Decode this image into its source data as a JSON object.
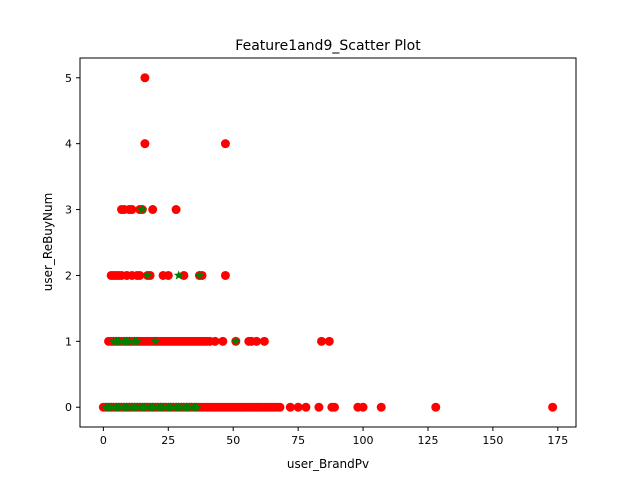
{
  "chart_data": {
    "type": "scatter",
    "title": "Feature1and9_Scatter Plot",
    "xlabel": "user_BrandPv",
    "ylabel": "user_ReBuyNum",
    "xlim": [
      -9,
      182
    ],
    "ylim": [
      -0.3,
      5.3
    ],
    "xticks": [
      0,
      25,
      50,
      75,
      100,
      125,
      150,
      175
    ],
    "yticks": [
      0,
      1,
      2,
      3,
      4,
      5
    ],
    "grid": false,
    "series": [
      {
        "marker": "circle",
        "color": "#ff0000",
        "points": [
          [
            16,
            5
          ],
          [
            16,
            4
          ],
          [
            47,
            4
          ],
          [
            7,
            3
          ],
          [
            8,
            3
          ],
          [
            10,
            3
          ],
          [
            11,
            3
          ],
          [
            14,
            3
          ],
          [
            15,
            3
          ],
          [
            19,
            3
          ],
          [
            28,
            3
          ],
          [
            3,
            2
          ],
          [
            4,
            2
          ],
          [
            5,
            2
          ],
          [
            6,
            2
          ],
          [
            7,
            2
          ],
          [
            9,
            2
          ],
          [
            11,
            2
          ],
          [
            13,
            2
          ],
          [
            14,
            2
          ],
          [
            17,
            2
          ],
          [
            18,
            2
          ],
          [
            23,
            2
          ],
          [
            25,
            2
          ],
          [
            31,
            2
          ],
          [
            37,
            2
          ],
          [
            38,
            2
          ],
          [
            47,
            2
          ],
          [
            2,
            1
          ],
          [
            3,
            1
          ],
          [
            4,
            1
          ],
          [
            5,
            1
          ],
          [
            6,
            1
          ],
          [
            7,
            1
          ],
          [
            8,
            1
          ],
          [
            9,
            1
          ],
          [
            10,
            1
          ],
          [
            11,
            1
          ],
          [
            12,
            1
          ],
          [
            13,
            1
          ],
          [
            14,
            1
          ],
          [
            15,
            1
          ],
          [
            16,
            1
          ],
          [
            17,
            1
          ],
          [
            18,
            1
          ],
          [
            19,
            1
          ],
          [
            20,
            1
          ],
          [
            21,
            1
          ],
          [
            22,
            1
          ],
          [
            23,
            1
          ],
          [
            24,
            1
          ],
          [
            25,
            1
          ],
          [
            26,
            1
          ],
          [
            27,
            1
          ],
          [
            28,
            1
          ],
          [
            29,
            1
          ],
          [
            30,
            1
          ],
          [
            31,
            1
          ],
          [
            32,
            1
          ],
          [
            33,
            1
          ],
          [
            34,
            1
          ],
          [
            35,
            1
          ],
          [
            36,
            1
          ],
          [
            37,
            1
          ],
          [
            38,
            1
          ],
          [
            39,
            1
          ],
          [
            40,
            1
          ],
          [
            41,
            1
          ],
          [
            43,
            1
          ],
          [
            46,
            1
          ],
          [
            51,
            1
          ],
          [
            56,
            1
          ],
          [
            57,
            1
          ],
          [
            59,
            1
          ],
          [
            62,
            1
          ],
          [
            84,
            1
          ],
          [
            87,
            1
          ],
          [
            0,
            0
          ],
          [
            1,
            0
          ],
          [
            2,
            0
          ],
          [
            3,
            0
          ],
          [
            4,
            0
          ],
          [
            5,
            0
          ],
          [
            6,
            0
          ],
          [
            7,
            0
          ],
          [
            8,
            0
          ],
          [
            9,
            0
          ],
          [
            10,
            0
          ],
          [
            11,
            0
          ],
          [
            12,
            0
          ],
          [
            13,
            0
          ],
          [
            14,
            0
          ],
          [
            15,
            0
          ],
          [
            16,
            0
          ],
          [
            17,
            0
          ],
          [
            18,
            0
          ],
          [
            19,
            0
          ],
          [
            20,
            0
          ],
          [
            21,
            0
          ],
          [
            22,
            0
          ],
          [
            23,
            0
          ],
          [
            24,
            0
          ],
          [
            25,
            0
          ],
          [
            26,
            0
          ],
          [
            27,
            0
          ],
          [
            28,
            0
          ],
          [
            29,
            0
          ],
          [
            30,
            0
          ],
          [
            31,
            0
          ],
          [
            32,
            0
          ],
          [
            33,
            0
          ],
          [
            34,
            0
          ],
          [
            35,
            0
          ],
          [
            36,
            0
          ],
          [
            37,
            0
          ],
          [
            38,
            0
          ],
          [
            39,
            0
          ],
          [
            40,
            0
          ],
          [
            41,
            0
          ],
          [
            42,
            0
          ],
          [
            43,
            0
          ],
          [
            44,
            0
          ],
          [
            45,
            0
          ],
          [
            46,
            0
          ],
          [
            47,
            0
          ],
          [
            48,
            0
          ],
          [
            49,
            0
          ],
          [
            50,
            0
          ],
          [
            51,
            0
          ],
          [
            52,
            0
          ],
          [
            53,
            0
          ],
          [
            54,
            0
          ],
          [
            55,
            0
          ],
          [
            56,
            0
          ],
          [
            57,
            0
          ],
          [
            58,
            0
          ],
          [
            59,
            0
          ],
          [
            60,
            0
          ],
          [
            61,
            0
          ],
          [
            62,
            0
          ],
          [
            63,
            0
          ],
          [
            64,
            0
          ],
          [
            65,
            0
          ],
          [
            66,
            0
          ],
          [
            67,
            0
          ],
          [
            68,
            0
          ],
          [
            72,
            0
          ],
          [
            75,
            0
          ],
          [
            78,
            0
          ],
          [
            83,
            0
          ],
          [
            88,
            0
          ],
          [
            89,
            0
          ],
          [
            98,
            0
          ],
          [
            100,
            0
          ],
          [
            107,
            0
          ],
          [
            128,
            0
          ],
          [
            173,
            0
          ]
        ]
      },
      {
        "marker": "star",
        "color": "#008000",
        "points": [
          [
            15,
            3
          ],
          [
            17,
            2
          ],
          [
            29,
            2
          ],
          [
            37,
            2
          ],
          [
            4,
            1
          ],
          [
            5,
            1
          ],
          [
            6,
            1
          ],
          [
            8,
            1
          ],
          [
            9,
            1
          ],
          [
            10,
            1
          ],
          [
            12,
            1
          ],
          [
            13,
            1
          ],
          [
            20,
            1
          ],
          [
            51,
            1
          ],
          [
            1,
            0
          ],
          [
            2,
            0
          ],
          [
            3,
            0
          ],
          [
            4,
            0
          ],
          [
            5,
            0
          ],
          [
            6,
            0
          ],
          [
            7,
            0
          ],
          [
            8,
            0
          ],
          [
            9,
            0
          ],
          [
            10,
            0
          ],
          [
            11,
            0
          ],
          [
            12,
            0
          ],
          [
            13,
            0
          ],
          [
            14,
            0
          ],
          [
            15,
            0
          ],
          [
            16,
            0
          ],
          [
            17,
            0
          ],
          [
            18,
            0
          ],
          [
            19,
            0
          ],
          [
            20,
            0
          ],
          [
            21,
            0
          ],
          [
            22,
            0
          ],
          [
            23,
            0
          ],
          [
            24,
            0
          ],
          [
            25,
            0
          ],
          [
            26,
            0
          ],
          [
            27,
            0
          ],
          [
            28,
            0
          ],
          [
            29,
            0
          ],
          [
            30,
            0
          ],
          [
            31,
            0
          ],
          [
            32,
            0
          ],
          [
            33,
            0
          ],
          [
            34,
            0
          ],
          [
            35,
            0
          ],
          [
            36,
            0
          ]
        ]
      }
    ]
  }
}
